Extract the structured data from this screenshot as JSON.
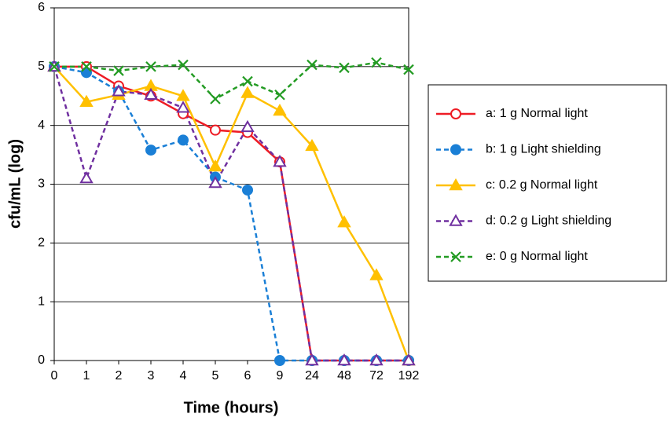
{
  "chart_data": {
    "type": "line",
    "x_label": "Time (hours)",
    "y_label": "cfu/mL (log)",
    "categories": [
      "0",
      "1",
      "2",
      "3",
      "4",
      "5",
      "6",
      "9",
      "24",
      "48",
      "72",
      "192"
    ],
    "ylim": [
      0,
      6
    ],
    "yticks": [
      0,
      1,
      2,
      3,
      4,
      5,
      6
    ],
    "grid": true,
    "series": [
      {
        "name": "a: 1 g Normal light",
        "color": "#ee1c25",
        "marker": "circle-open",
        "dashed": false,
        "values": [
          5,
          5,
          4.67,
          4.5,
          4.2,
          3.92,
          3.88,
          3.38,
          0,
          0,
          0,
          0
        ]
      },
      {
        "name": "b: 1 g Light shielding",
        "color": "#1a7fd6",
        "marker": "circle",
        "dashed": true,
        "values": [
          5,
          4.9,
          4.58,
          3.58,
          3.75,
          3.12,
          2.9,
          0,
          0,
          0,
          0,
          0
        ]
      },
      {
        "name": "c: 0.2 g Normal light",
        "color": "#ffc000",
        "marker": "triangle",
        "dashed": false,
        "values": [
          5,
          4.4,
          4.52,
          4.67,
          4.5,
          3.3,
          4.55,
          4.25,
          3.65,
          2.35,
          1.45,
          0
        ]
      },
      {
        "name": "d: 0.2 g Light shielding",
        "color": "#7030a0",
        "marker": "triangle-open",
        "dashed": true,
        "values": [
          5,
          3.1,
          4.58,
          4.52,
          4.3,
          3.02,
          3.97,
          3.38,
          0,
          0,
          0,
          0
        ]
      },
      {
        "name": "e: 0 g Normal light",
        "color": "#239b23",
        "marker": "x",
        "dashed": true,
        "values": [
          5,
          5,
          4.93,
          5.0,
          5.03,
          4.45,
          4.75,
          4.52,
          5.03,
          4.98,
          5.07,
          4.95
        ]
      }
    ]
  }
}
